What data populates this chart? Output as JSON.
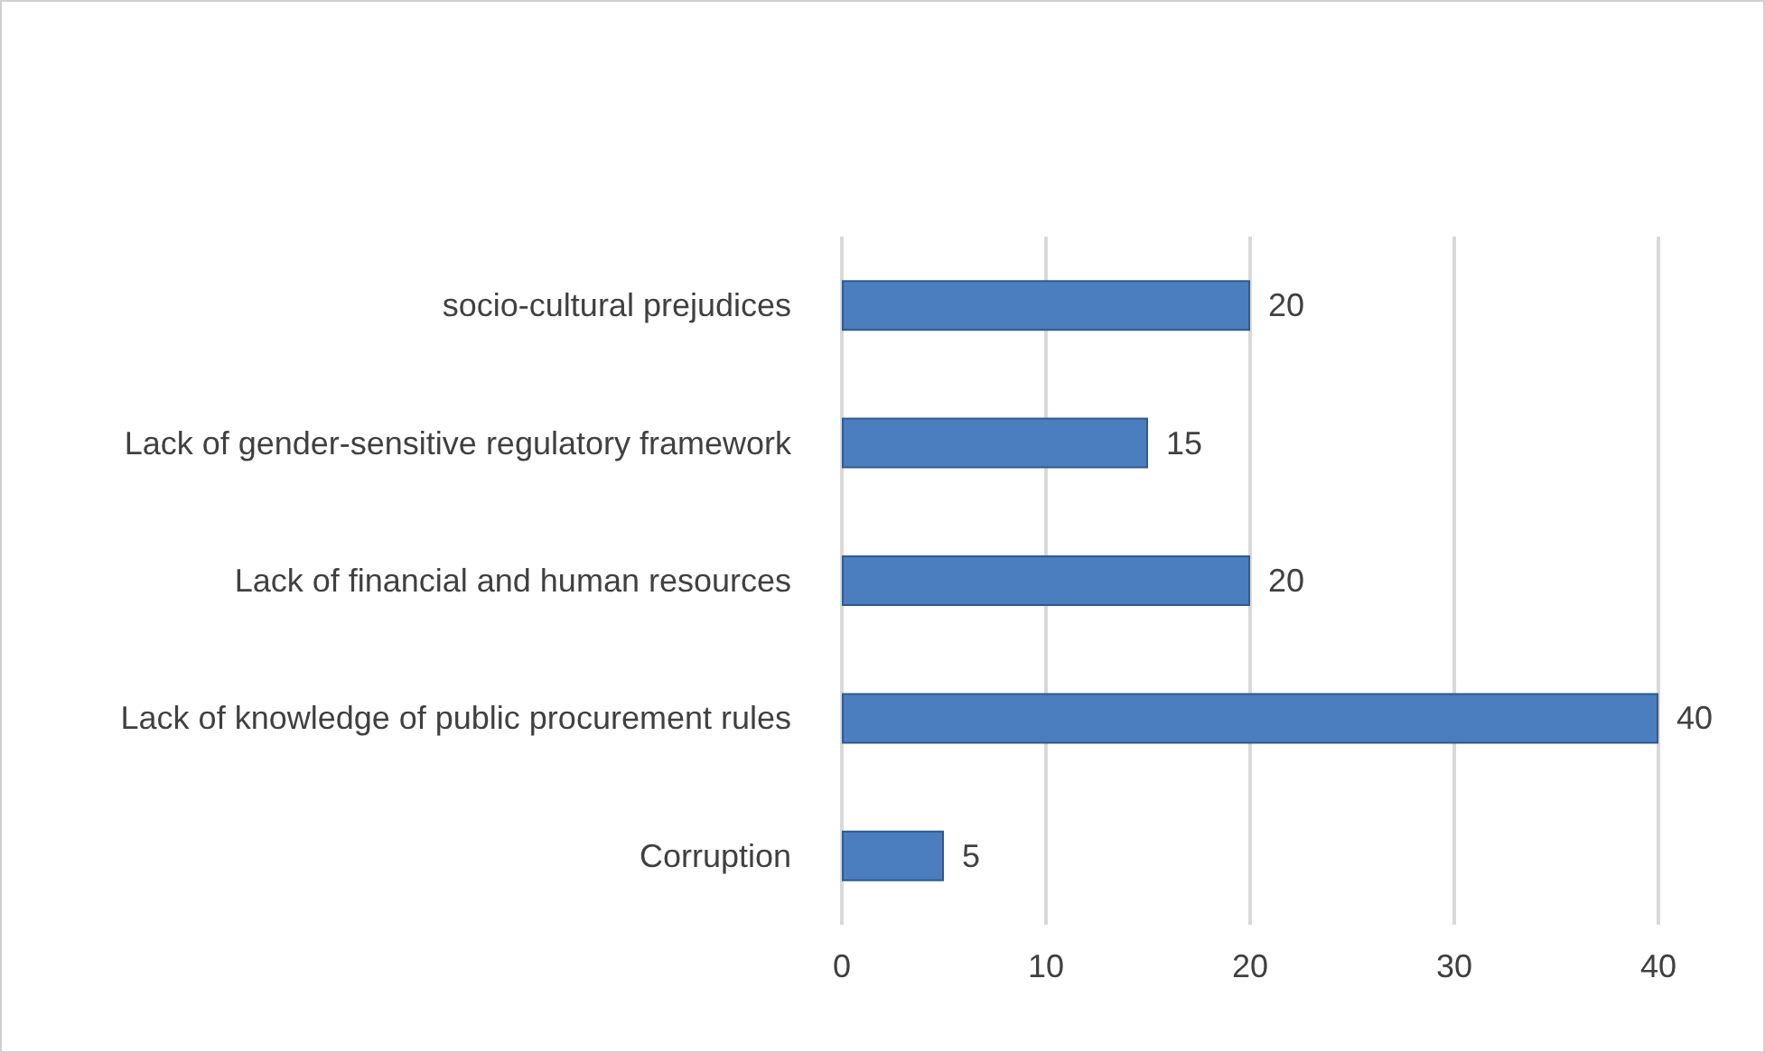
{
  "chart_data": {
    "type": "bar",
    "orientation": "horizontal",
    "categories": [
      "socio-cultural prejudices",
      "Lack of gender-sensitive regulatory framework",
      "Lack of financial and human resources",
      "Lack of knowledge of public procurement rules",
      "Corruption"
    ],
    "values": [
      20,
      15,
      20,
      40,
      5
    ],
    "color": "#4a7ebf",
    "xlim": [
      0,
      40
    ],
    "xticks": [
      0,
      10,
      20,
      30,
      40
    ],
    "grid": "x",
    "data_labels": true
  }
}
